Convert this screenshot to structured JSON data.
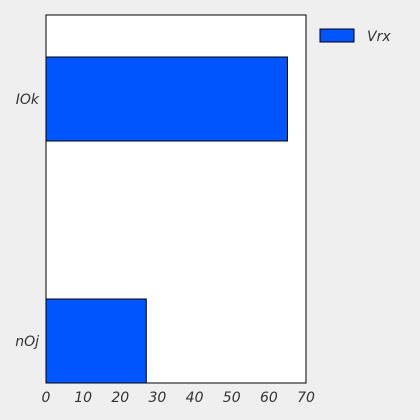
{
  "chart_data": {
    "type": "bar",
    "orientation": "horizontal",
    "categories": [
      "IOk",
      "nOj"
    ],
    "series": [
      {
        "name": "Vrx",
        "values": [
          65,
          27
        ],
        "color": "#0055ff"
      }
    ],
    "xlim": [
      0,
      70
    ],
    "x_ticks": [
      0,
      10,
      20,
      30,
      40,
      50,
      60,
      70
    ],
    "title": "",
    "xlabel": "",
    "ylabel": "",
    "grid": false,
    "legend": {
      "position": "outside-top-right",
      "entries": [
        "Vrx"
      ]
    },
    "background": "#efefef",
    "plot_background": "#ffffff"
  }
}
